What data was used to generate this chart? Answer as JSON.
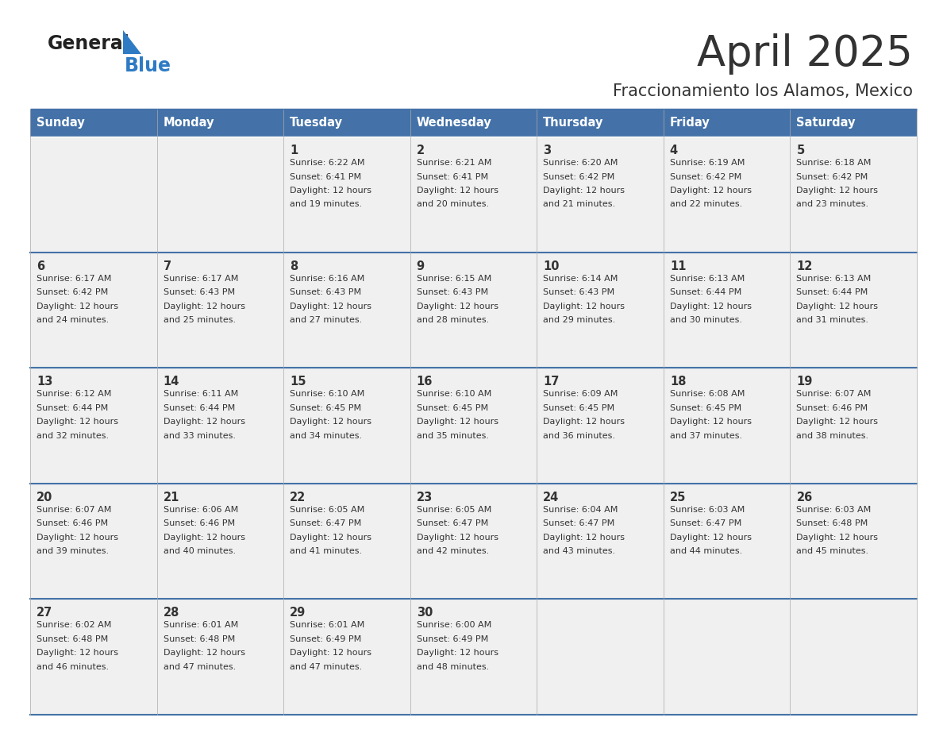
{
  "title": "April 2025",
  "subtitle": "Fraccionamiento los Alamos, Mexico",
  "header_bg": "#4472A8",
  "header_text_color": "#FFFFFF",
  "cell_bg_light": "#F0F0F0",
  "border_color": "#4472A8",
  "text_color": "#333333",
  "logo_black": "#222222",
  "logo_blue": "#2E7BC4",
  "days_of_week": [
    "Sunday",
    "Monday",
    "Tuesday",
    "Wednesday",
    "Thursday",
    "Friday",
    "Saturday"
  ],
  "weeks": [
    [
      {
        "day": "",
        "sunrise": "",
        "sunset": "",
        "daylight": ""
      },
      {
        "day": "",
        "sunrise": "",
        "sunset": "",
        "daylight": ""
      },
      {
        "day": "1",
        "sunrise": "Sunrise: 6:22 AM",
        "sunset": "Sunset: 6:41 PM",
        "daylight": "Daylight: 12 hours\nand 19 minutes."
      },
      {
        "day": "2",
        "sunrise": "Sunrise: 6:21 AM",
        "sunset": "Sunset: 6:41 PM",
        "daylight": "Daylight: 12 hours\nand 20 minutes."
      },
      {
        "day": "3",
        "sunrise": "Sunrise: 6:20 AM",
        "sunset": "Sunset: 6:42 PM",
        "daylight": "Daylight: 12 hours\nand 21 minutes."
      },
      {
        "day": "4",
        "sunrise": "Sunrise: 6:19 AM",
        "sunset": "Sunset: 6:42 PM",
        "daylight": "Daylight: 12 hours\nand 22 minutes."
      },
      {
        "day": "5",
        "sunrise": "Sunrise: 6:18 AM",
        "sunset": "Sunset: 6:42 PM",
        "daylight": "Daylight: 12 hours\nand 23 minutes."
      }
    ],
    [
      {
        "day": "6",
        "sunrise": "Sunrise: 6:17 AM",
        "sunset": "Sunset: 6:42 PM",
        "daylight": "Daylight: 12 hours\nand 24 minutes."
      },
      {
        "day": "7",
        "sunrise": "Sunrise: 6:17 AM",
        "sunset": "Sunset: 6:43 PM",
        "daylight": "Daylight: 12 hours\nand 25 minutes."
      },
      {
        "day": "8",
        "sunrise": "Sunrise: 6:16 AM",
        "sunset": "Sunset: 6:43 PM",
        "daylight": "Daylight: 12 hours\nand 27 minutes."
      },
      {
        "day": "9",
        "sunrise": "Sunrise: 6:15 AM",
        "sunset": "Sunset: 6:43 PM",
        "daylight": "Daylight: 12 hours\nand 28 minutes."
      },
      {
        "day": "10",
        "sunrise": "Sunrise: 6:14 AM",
        "sunset": "Sunset: 6:43 PM",
        "daylight": "Daylight: 12 hours\nand 29 minutes."
      },
      {
        "day": "11",
        "sunrise": "Sunrise: 6:13 AM",
        "sunset": "Sunset: 6:44 PM",
        "daylight": "Daylight: 12 hours\nand 30 minutes."
      },
      {
        "day": "12",
        "sunrise": "Sunrise: 6:13 AM",
        "sunset": "Sunset: 6:44 PM",
        "daylight": "Daylight: 12 hours\nand 31 minutes."
      }
    ],
    [
      {
        "day": "13",
        "sunrise": "Sunrise: 6:12 AM",
        "sunset": "Sunset: 6:44 PM",
        "daylight": "Daylight: 12 hours\nand 32 minutes."
      },
      {
        "day": "14",
        "sunrise": "Sunrise: 6:11 AM",
        "sunset": "Sunset: 6:44 PM",
        "daylight": "Daylight: 12 hours\nand 33 minutes."
      },
      {
        "day": "15",
        "sunrise": "Sunrise: 6:10 AM",
        "sunset": "Sunset: 6:45 PM",
        "daylight": "Daylight: 12 hours\nand 34 minutes."
      },
      {
        "day": "16",
        "sunrise": "Sunrise: 6:10 AM",
        "sunset": "Sunset: 6:45 PM",
        "daylight": "Daylight: 12 hours\nand 35 minutes."
      },
      {
        "day": "17",
        "sunrise": "Sunrise: 6:09 AM",
        "sunset": "Sunset: 6:45 PM",
        "daylight": "Daylight: 12 hours\nand 36 minutes."
      },
      {
        "day": "18",
        "sunrise": "Sunrise: 6:08 AM",
        "sunset": "Sunset: 6:45 PM",
        "daylight": "Daylight: 12 hours\nand 37 minutes."
      },
      {
        "day": "19",
        "sunrise": "Sunrise: 6:07 AM",
        "sunset": "Sunset: 6:46 PM",
        "daylight": "Daylight: 12 hours\nand 38 minutes."
      }
    ],
    [
      {
        "day": "20",
        "sunrise": "Sunrise: 6:07 AM",
        "sunset": "Sunset: 6:46 PM",
        "daylight": "Daylight: 12 hours\nand 39 minutes."
      },
      {
        "day": "21",
        "sunrise": "Sunrise: 6:06 AM",
        "sunset": "Sunset: 6:46 PM",
        "daylight": "Daylight: 12 hours\nand 40 minutes."
      },
      {
        "day": "22",
        "sunrise": "Sunrise: 6:05 AM",
        "sunset": "Sunset: 6:47 PM",
        "daylight": "Daylight: 12 hours\nand 41 minutes."
      },
      {
        "day": "23",
        "sunrise": "Sunrise: 6:05 AM",
        "sunset": "Sunset: 6:47 PM",
        "daylight": "Daylight: 12 hours\nand 42 minutes."
      },
      {
        "day": "24",
        "sunrise": "Sunrise: 6:04 AM",
        "sunset": "Sunset: 6:47 PM",
        "daylight": "Daylight: 12 hours\nand 43 minutes."
      },
      {
        "day": "25",
        "sunrise": "Sunrise: 6:03 AM",
        "sunset": "Sunset: 6:47 PM",
        "daylight": "Daylight: 12 hours\nand 44 minutes."
      },
      {
        "day": "26",
        "sunrise": "Sunrise: 6:03 AM",
        "sunset": "Sunset: 6:48 PM",
        "daylight": "Daylight: 12 hours\nand 45 minutes."
      }
    ],
    [
      {
        "day": "27",
        "sunrise": "Sunrise: 6:02 AM",
        "sunset": "Sunset: 6:48 PM",
        "daylight": "Daylight: 12 hours\nand 46 minutes."
      },
      {
        "day": "28",
        "sunrise": "Sunrise: 6:01 AM",
        "sunset": "Sunset: 6:48 PM",
        "daylight": "Daylight: 12 hours\nand 47 minutes."
      },
      {
        "day": "29",
        "sunrise": "Sunrise: 6:01 AM",
        "sunset": "Sunset: 6:49 PM",
        "daylight": "Daylight: 12 hours\nand 47 minutes."
      },
      {
        "day": "30",
        "sunrise": "Sunrise: 6:00 AM",
        "sunset": "Sunset: 6:49 PM",
        "daylight": "Daylight: 12 hours\nand 48 minutes."
      },
      {
        "day": "",
        "sunrise": "",
        "sunset": "",
        "daylight": ""
      },
      {
        "day": "",
        "sunrise": "",
        "sunset": "",
        "daylight": ""
      },
      {
        "day": "",
        "sunrise": "",
        "sunset": "",
        "daylight": ""
      }
    ]
  ]
}
